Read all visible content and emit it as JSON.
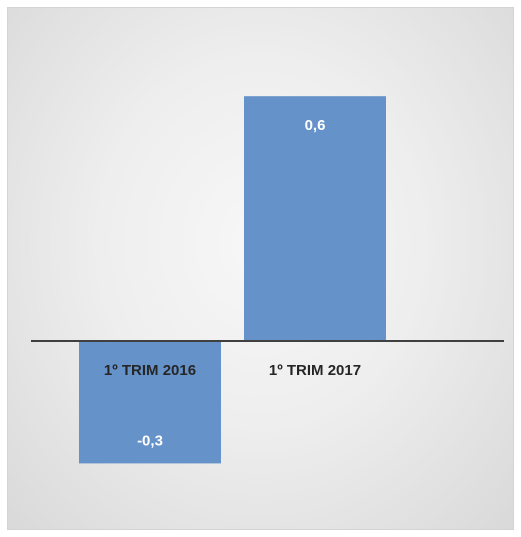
{
  "chart_data": {
    "type": "bar",
    "categories": [
      "1º TRIM 2016",
      "1º TRIM 2017"
    ],
    "values": [
      -0.3,
      0.6
    ],
    "data_labels": [
      "-0,3",
      "0,6"
    ],
    "title": "",
    "xlabel": "",
    "ylabel": "",
    "ylim": [
      -0.3,
      0.6
    ],
    "grid": false,
    "legend": "none",
    "colors": {
      "bar": "#6592c9",
      "axis": "#404040",
      "category_text": "#262626",
      "data_label_text": "#ffffff"
    }
  }
}
